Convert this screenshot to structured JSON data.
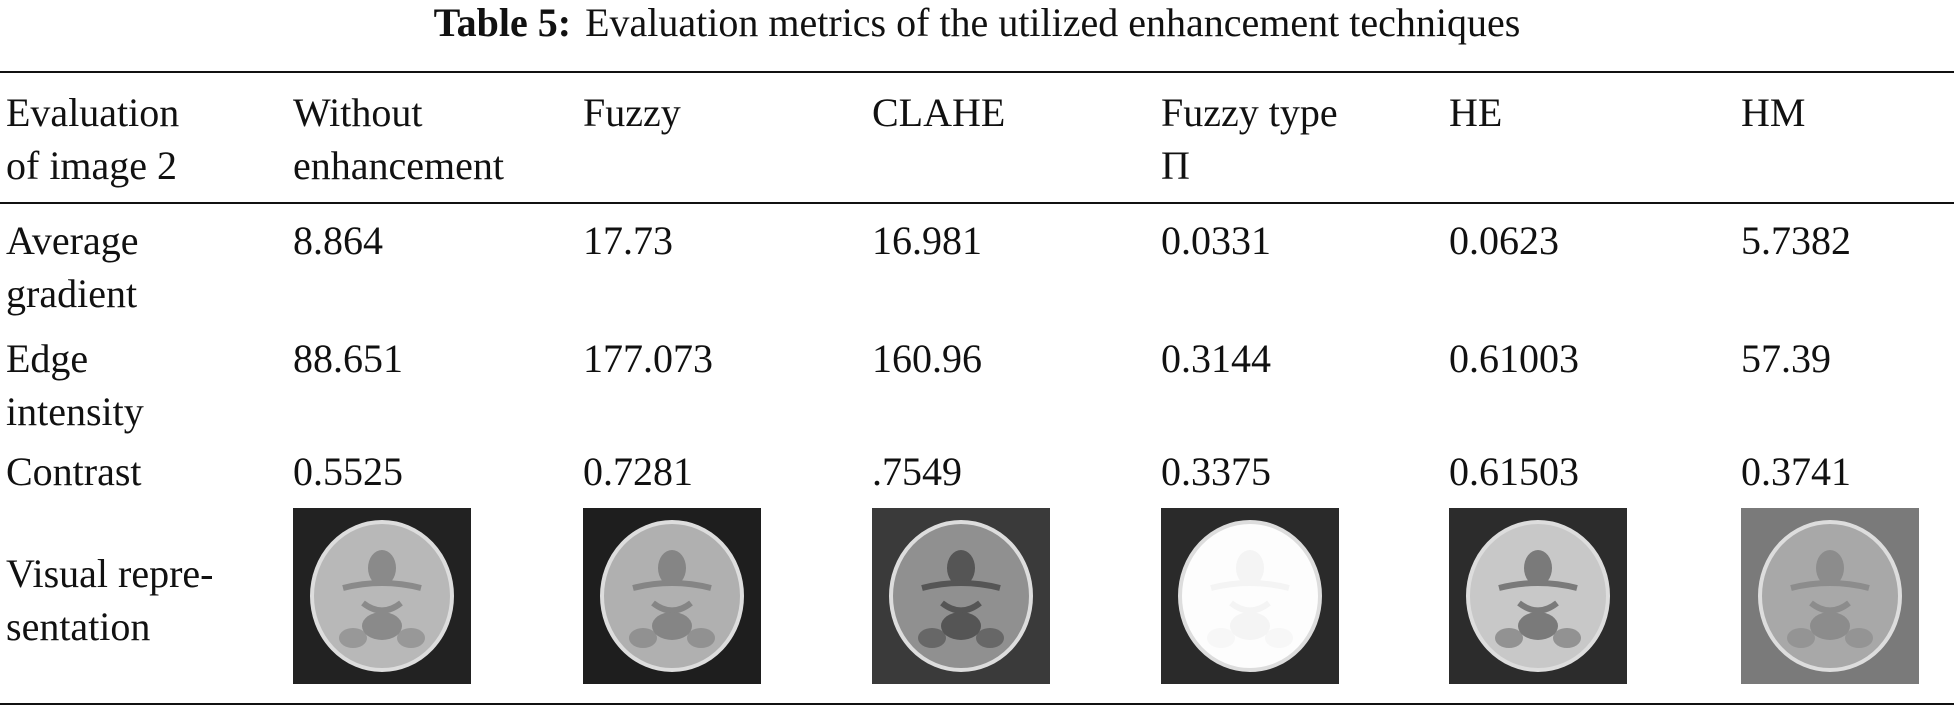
{
  "table": {
    "caption": {
      "label": "Table 5:",
      "text": "Evaluation metrics of the utilized enhancement techniques"
    },
    "header": [
      "Evaluation\nof image 2",
      "Without\nenhancement",
      "Fuzzy",
      "CLAHE",
      "Fuzzy type\nΠ",
      "HE",
      "HM"
    ],
    "rows": [
      [
        "Average\ngradient",
        "8.864",
        "17.73",
        "16.981",
        "0.0331",
        "0.0623",
        "5.7382"
      ],
      [
        "Edge\nintensity",
        "88.651",
        "177.073",
        "160.96",
        "0.3144",
        "0.61003",
        "57.39"
      ],
      [
        "Contrast",
        "0.5525",
        "0.7281",
        ".7549",
        "0.3375",
        "0.61503",
        "0.3741"
      ],
      [
        "Visual repre-\nsentation"
      ]
    ]
  }
}
